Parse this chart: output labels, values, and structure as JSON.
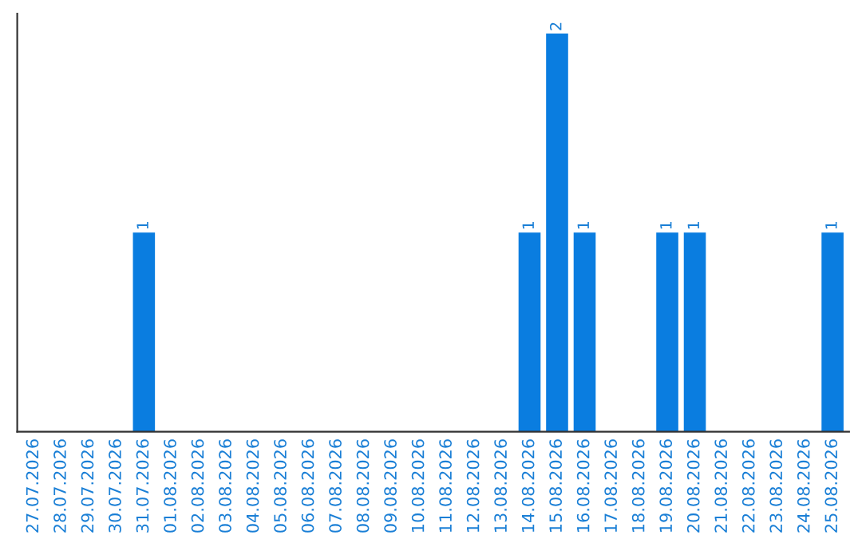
{
  "chart_data": {
    "type": "bar",
    "categories": [
      "27.07.2026",
      "28.07.2026",
      "29.07.2026",
      "30.07.2026",
      "31.07.2026",
      "01.08.2026",
      "02.08.2026",
      "03.08.2026",
      "04.08.2026",
      "05.08.2026",
      "06.08.2026",
      "07.08.2026",
      "08.08.2026",
      "09.08.2026",
      "10.08.2026",
      "11.08.2026",
      "12.08.2026",
      "13.08.2026",
      "14.08.2026",
      "15.08.2026",
      "16.08.2026",
      "17.08.2026",
      "18.08.2026",
      "19.08.2026",
      "20.08.2026",
      "21.08.2026",
      "22.08.2026",
      "23.08.2026",
      "24.08.2026",
      "25.08.2026"
    ],
    "values": [
      0,
      0,
      0,
      0,
      1,
      0,
      0,
      0,
      0,
      0,
      0,
      0,
      0,
      0,
      0,
      0,
      0,
      0,
      1,
      2,
      1,
      0,
      0,
      1,
      1,
      0,
      0,
      0,
      0,
      1
    ],
    "value_labels": [
      null,
      null,
      null,
      null,
      "1",
      null,
      null,
      null,
      null,
      null,
      null,
      null,
      null,
      null,
      null,
      null,
      null,
      null,
      "1",
      "2",
      "1",
      null,
      null,
      "1",
      "1",
      null,
      null,
      null,
      null,
      "1"
    ],
    "color": "#0a7de0",
    "ylim": [
      0,
      2.1
    ],
    "tick_labels": "x",
    "grid": false,
    "legend": false
  }
}
